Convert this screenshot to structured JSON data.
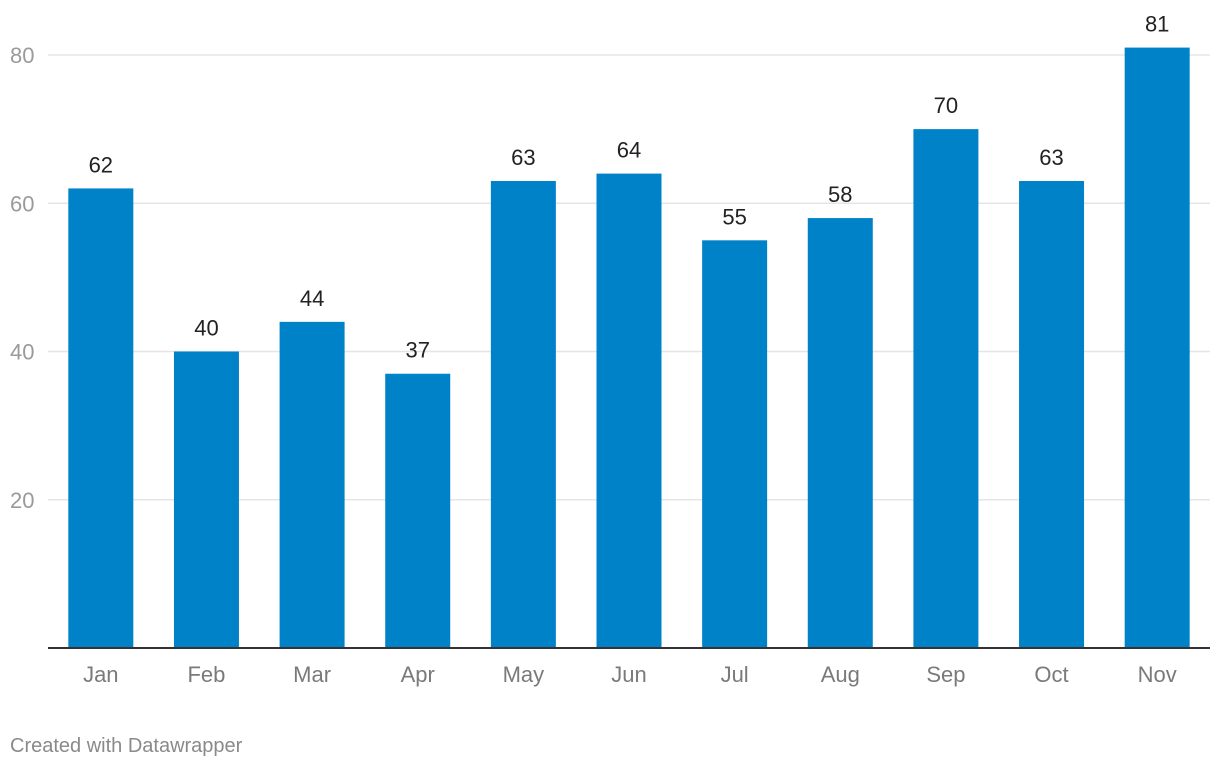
{
  "chart_data": {
    "type": "bar",
    "categories": [
      "Jan",
      "Feb",
      "Mar",
      "Apr",
      "May",
      "Jun",
      "Jul",
      "Aug",
      "Sep",
      "Oct",
      "Nov"
    ],
    "values": [
      62,
      40,
      44,
      37,
      63,
      64,
      55,
      58,
      70,
      63,
      81
    ],
    "title": "",
    "xlabel": "",
    "ylabel": "",
    "ylim": [
      0,
      80
    ],
    "yticks": [
      20,
      40,
      60,
      80
    ],
    "grid": true,
    "data_labels": true,
    "bar_color": "#0082C8",
    "gridline_color": "#E5E5E5",
    "axis_color": "#333333"
  },
  "footer": {
    "credit": "Created with Datawrapper"
  }
}
